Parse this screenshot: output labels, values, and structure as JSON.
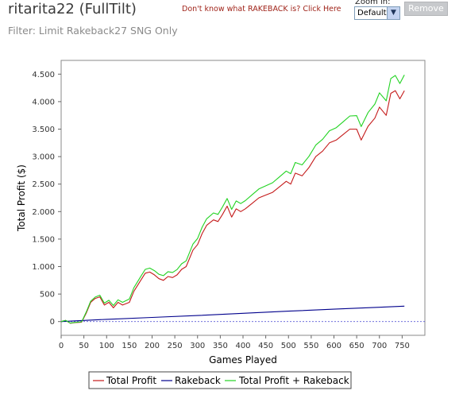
{
  "header": {
    "title": "ritarita22 (FullTilt)",
    "filter": "Filter: Limit Rakeback27 SNG Only",
    "rakeback_link": "Don't know what RAKEBACK is? Click Here",
    "zoom_label": "Zoom in:",
    "zoom_value": "Default",
    "remove_label": "Remove"
  },
  "colors": {
    "total_profit": "#c41a1a",
    "rakeback": "#00008c",
    "total_plus_rakeback": "#22d322",
    "zero_line": "#5b5bd6"
  },
  "chart_data": {
    "type": "line",
    "xlabel": "Games Played",
    "ylabel": "Total Profit ($)",
    "xlim": [
      0,
      800
    ],
    "ylim": [
      -250,
      4750
    ],
    "x_ticks": [
      0,
      50,
      100,
      150,
      200,
      250,
      300,
      350,
      400,
      450,
      500,
      550,
      600,
      650,
      700,
      750
    ],
    "y_ticks": [
      {
        "value": 0,
        "label": "0"
      },
      {
        "value": 500,
        "label": "500"
      },
      {
        "value": 1000,
        "label": "1.000"
      },
      {
        "value": 1500,
        "label": "1.500"
      },
      {
        "value": 2000,
        "label": "2.000"
      },
      {
        "value": 2500,
        "label": "2.500"
      },
      {
        "value": 3000,
        "label": "3.000"
      },
      {
        "value": 3500,
        "label": "3.500"
      },
      {
        "value": 4000,
        "label": "4.000"
      },
      {
        "value": 4500,
        "label": "4.500"
      }
    ],
    "grid": false,
    "legend_position": "bottom",
    "series": [
      {
        "name": "Total Profit",
        "x": [
          0,
          10,
          20,
          30,
          45,
          55,
          65,
          75,
          85,
          95,
          105,
          115,
          125,
          135,
          150,
          160,
          175,
          185,
          195,
          205,
          215,
          225,
          235,
          245,
          255,
          265,
          275,
          290,
          300,
          310,
          320,
          335,
          345,
          355,
          365,
          375,
          385,
          395,
          405,
          420,
          435,
          450,
          465,
          480,
          495,
          505,
          515,
          530,
          545,
          560,
          575,
          590,
          605,
          620,
          635,
          650,
          660,
          675,
          690,
          700,
          715,
          725,
          735,
          745,
          755
        ],
        "values": [
          0,
          20,
          -30,
          -20,
          -10,
          150,
          350,
          420,
          450,
          300,
          350,
          250,
          350,
          300,
          350,
          550,
          750,
          880,
          900,
          850,
          780,
          750,
          820,
          800,
          850,
          950,
          1000,
          1300,
          1400,
          1600,
          1750,
          1850,
          1820,
          1950,
          2100,
          1900,
          2050,
          2000,
          2050,
          2150,
          2250,
          2300,
          2350,
          2450,
          2550,
          2500,
          2700,
          2650,
          2800,
          3000,
          3100,
          3250,
          3300,
          3400,
          3500,
          3500,
          3300,
          3550,
          3700,
          3900,
          3750,
          4150,
          4200,
          4050,
          4200
        ]
      },
      {
        "name": "Rakeback",
        "x": [
          0,
          100,
          200,
          300,
          400,
          500,
          600,
          700,
          755
        ],
        "values": [
          0,
          40,
          75,
          110,
          150,
          190,
          225,
          260,
          280
        ]
      },
      {
        "name": "Total Profit + Rakeback",
        "x": [
          0,
          10,
          20,
          30,
          45,
          55,
          65,
          75,
          85,
          95,
          105,
          115,
          125,
          135,
          150,
          160,
          175,
          185,
          195,
          205,
          215,
          225,
          235,
          245,
          255,
          265,
          275,
          290,
          300,
          310,
          320,
          335,
          345,
          355,
          365,
          375,
          385,
          395,
          405,
          420,
          435,
          450,
          465,
          480,
          495,
          505,
          515,
          530,
          545,
          560,
          575,
          590,
          605,
          620,
          635,
          650,
          660,
          675,
          690,
          700,
          715,
          725,
          735,
          745,
          755
        ],
        "values": [
          0,
          22,
          -27,
          -16,
          -5,
          170,
          372,
          445,
          480,
          335,
          388,
          292,
          396,
          350,
          410,
          615,
          818,
          950,
          973,
          927,
          860,
          835,
          908,
          893,
          946,
          1050,
          1104,
          1410,
          1512,
          1715,
          1868,
          1975,
          1950,
          2085,
          2238,
          2040,
          2193,
          2146,
          2200,
          2306,
          2412,
          2468,
          2524,
          2630,
          2737,
          2690,
          2893,
          2850,
          3005,
          3210,
          3315,
          3470,
          3526,
          3632,
          3738,
          3744,
          3546,
          3801,
          3955,
          4160,
          4015,
          4420,
          4475,
          4330,
          4485
        ]
      }
    ]
  }
}
